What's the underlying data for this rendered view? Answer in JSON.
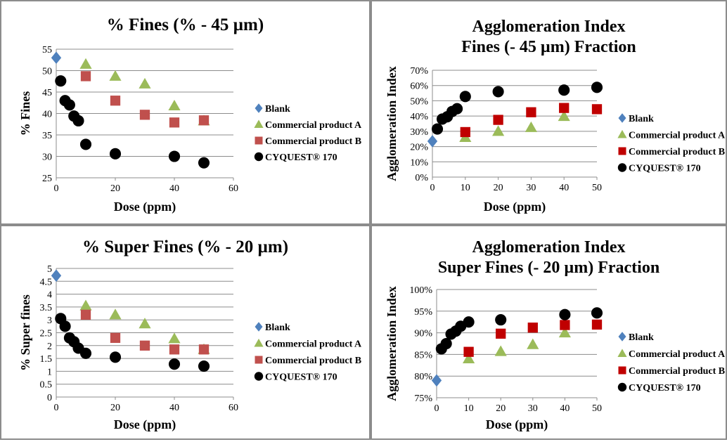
{
  "chart_data": [
    {
      "type": "scatter",
      "title": [
        "% Fines (% - 45 µm)"
      ],
      "xlabel": "Dose (ppm)",
      "ylabel": "% Fines",
      "xlim": [
        0,
        60
      ],
      "ylim": [
        25,
        55
      ],
      "xticks": [
        "0",
        "20",
        "40",
        "60"
      ],
      "yticks": [
        "25",
        "30",
        "35",
        "40",
        "45",
        "50",
        "55"
      ],
      "grid": "horizontal",
      "legend_position": "right",
      "series": [
        {
          "name": "Blank",
          "marker": "diamond",
          "color": "#4f81bd",
          "points": [
            [
              0,
              53
            ]
          ]
        },
        {
          "name": "Commercial product A",
          "marker": "triangle",
          "color": "#9bbb59",
          "points": [
            [
              10,
              51.5
            ],
            [
              20,
              48.7
            ],
            [
              30,
              46.9
            ],
            [
              40,
              41.8
            ],
            [
              50,
              38.3
            ]
          ]
        },
        {
          "name": "Commercial product B",
          "marker": "square",
          "color": "#c0504d",
          "points": [
            [
              10,
              48.7
            ],
            [
              20,
              43
            ],
            [
              30,
              39.7
            ],
            [
              40,
              37.9
            ],
            [
              50,
              38.4
            ]
          ]
        },
        {
          "name": "CYQUEST® 170",
          "marker": "circle",
          "color": "#000000",
          "points": [
            [
              1.5,
              47.6
            ],
            [
              3,
              43
            ],
            [
              4.5,
              42
            ],
            [
              6,
              39.4
            ],
            [
              7.5,
              38.3
            ],
            [
              10,
              32.8
            ],
            [
              20,
              30.6
            ],
            [
              40,
              30
            ],
            [
              50,
              28.5
            ]
          ]
        }
      ]
    },
    {
      "type": "scatter",
      "title": [
        "Agglomeration Index",
        "Fines (- 45 µm) Fraction"
      ],
      "xlabel": "Dose (ppm)",
      "ylabel": "Agglomeration Index",
      "xlim": [
        0,
        50
      ],
      "ylim": [
        0,
        70
      ],
      "xticks": [
        "0",
        "10",
        "20",
        "30",
        "40",
        "50"
      ],
      "yticks": [
        "0%",
        "10%",
        "20%",
        "30%",
        "40%",
        "50%",
        "60%",
        "70%"
      ],
      "grid": "horizontal",
      "legend_position": "right",
      "series": [
        {
          "name": "Blank",
          "marker": "diamond",
          "color": "#4f81bd",
          "points": [
            [
              0,
              23.5
            ]
          ]
        },
        {
          "name": "Commercial product A",
          "marker": "triangle",
          "color": "#9bbb59",
          "points": [
            [
              10,
              26
            ],
            [
              20,
              30
            ],
            [
              30,
              32.5
            ],
            [
              40,
              39.8
            ]
          ]
        },
        {
          "name": "Commercial product B",
          "marker": "square",
          "color": "#c00000",
          "points": [
            [
              10,
              29.5
            ],
            [
              20,
              37.5
            ],
            [
              30,
              42.5
            ],
            [
              40,
              45.3
            ],
            [
              50,
              44.5
            ]
          ]
        },
        {
          "name": "CYQUEST® 170",
          "marker": "circle",
          "color": "#000000",
          "points": [
            [
              1.5,
              31.5
            ],
            [
              3,
              38
            ],
            [
              4.5,
              39.5
            ],
            [
              6,
              43
            ],
            [
              7.5,
              44.8
            ],
            [
              10,
              52.8
            ],
            [
              20,
              56
            ],
            [
              40,
              57
            ],
            [
              50,
              58.8
            ]
          ]
        }
      ]
    },
    {
      "type": "scatter",
      "title": [
        "% Super Fines (% - 20 µm)"
      ],
      "xlabel": "Dose (ppm)",
      "ylabel": "% Super fines",
      "xlim": [
        0,
        60
      ],
      "ylim": [
        0,
        5
      ],
      "xticks": [
        "0",
        "20",
        "40",
        "60"
      ],
      "yticks": [
        "0",
        "0.5",
        "1",
        "1.5",
        "2",
        "2.5",
        "3",
        "3.5",
        "4",
        "4.5",
        "5"
      ],
      "grid": "horizontal",
      "legend_position": "right",
      "series": [
        {
          "name": "Blank",
          "marker": "diamond",
          "color": "#4f81bd",
          "points": [
            [
              0,
              4.72
            ]
          ]
        },
        {
          "name": "Commercial product A",
          "marker": "triangle",
          "color": "#9bbb59",
          "points": [
            [
              10,
              3.55
            ],
            [
              20,
              3.2
            ],
            [
              30,
              2.85
            ],
            [
              40,
              2.27
            ],
            [
              50,
              1.85
            ]
          ]
        },
        {
          "name": "Commercial product B",
          "marker": "square",
          "color": "#c0504d",
          "points": [
            [
              10,
              3.2
            ],
            [
              20,
              2.3
            ],
            [
              30,
              2
            ],
            [
              40,
              1.85
            ],
            [
              50,
              1.85
            ]
          ]
        },
        {
          "name": "CYQUEST® 170",
          "marker": "circle",
          "color": "#000000",
          "points": [
            [
              1.5,
              3.05
            ],
            [
              3,
              2.75
            ],
            [
              4.5,
              2.3
            ],
            [
              6,
              2.15
            ],
            [
              7.5,
              1.9
            ],
            [
              10,
              1.7
            ],
            [
              20,
              1.55
            ],
            [
              40,
              1.28
            ],
            [
              50,
              1.2
            ]
          ]
        }
      ]
    },
    {
      "type": "scatter",
      "title": [
        "Agglomeration Index",
        "Super Fines (- 20 µm) Fraction"
      ],
      "xlabel": "Dose (ppm)",
      "ylabel": "Agglomeration Index",
      "xlim": [
        0,
        50
      ],
      "ylim": [
        75,
        100
      ],
      "xticks": [
        "0",
        "10",
        "20",
        "30",
        "40",
        "50"
      ],
      "yticks": [
        "75%",
        "80%",
        "85%",
        "90%",
        "95%",
        "100%"
      ],
      "grid": "horizontal",
      "legend_position": "right",
      "series": [
        {
          "name": "Blank",
          "marker": "diamond",
          "color": "#4f81bd",
          "points": [
            [
              0,
              79
            ]
          ]
        },
        {
          "name": "Commercial product A",
          "marker": "triangle",
          "color": "#9bbb59",
          "points": [
            [
              10,
              84
            ],
            [
              20,
              85.7
            ],
            [
              30,
              87.3
            ],
            [
              40,
              90
            ]
          ]
        },
        {
          "name": "Commercial product B",
          "marker": "square",
          "color": "#c00000",
          "points": [
            [
              10,
              85.6
            ],
            [
              20,
              89.8
            ],
            [
              30,
              91.2
            ],
            [
              40,
              91.8
            ],
            [
              50,
              91.9
            ]
          ]
        },
        {
          "name": "CYQUEST® 170",
          "marker": "circle",
          "color": "#000000",
          "points": [
            [
              1.5,
              86.3
            ],
            [
              3,
              87.5
            ],
            [
              4.5,
              89.7
            ],
            [
              6,
              90.4
            ],
            [
              7.5,
              91.5
            ],
            [
              10,
              92.5
            ],
            [
              20,
              93
            ],
            [
              40,
              94.2
            ],
            [
              50,
              94.6
            ]
          ]
        }
      ]
    }
  ]
}
